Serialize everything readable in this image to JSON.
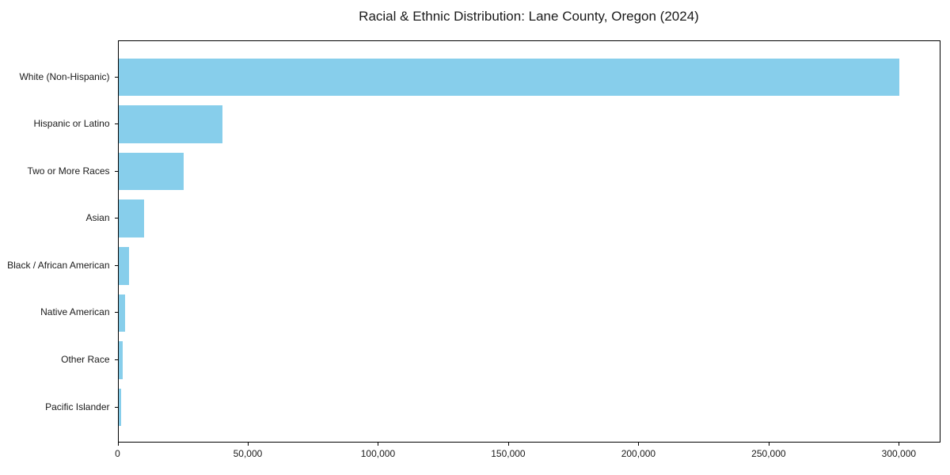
{
  "chart_data": {
    "type": "bar",
    "orientation": "horizontal",
    "title": "Racial & Ethnic Distribution: Lane County, Oregon (2024)",
    "categories": [
      "White (Non-Hispanic)",
      "Hispanic or Latino",
      "Two or More Races",
      "Asian",
      "Black / African American",
      "Native American",
      "Other Race",
      "Pacific Islander"
    ],
    "values": [
      300000,
      40000,
      25000,
      10000,
      4000,
      2500,
      1800,
      1200
    ],
    "xlabel": "",
    "ylabel": "",
    "xlim": [
      0,
      316000
    ],
    "x_ticks": [
      0,
      50000,
      100000,
      150000,
      200000,
      250000,
      300000
    ],
    "x_tick_labels": [
      "0",
      "50,000",
      "100,000",
      "150,000",
      "200,000",
      "250,000",
      "300,000"
    ],
    "bar_color": "#87CEEB",
    "axis_color": "#000000",
    "text_color": "#1a1a1a",
    "grid": false,
    "legend": null
  }
}
